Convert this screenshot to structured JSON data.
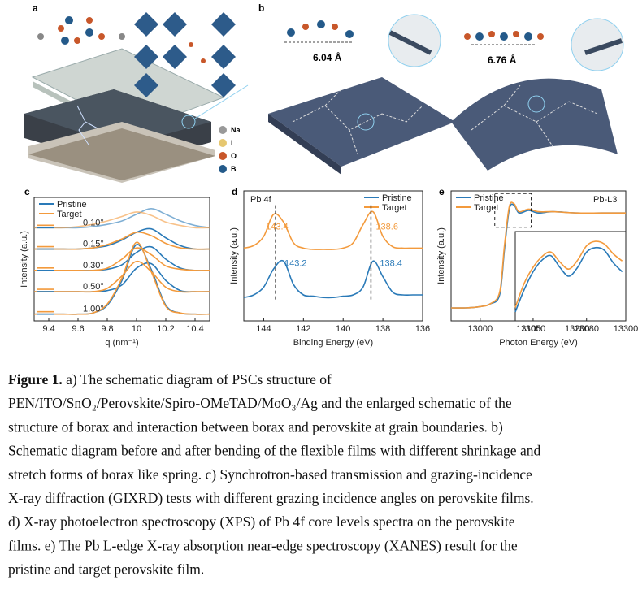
{
  "figure": {
    "panel_labels": [
      "a",
      "b",
      "c",
      "d",
      "e"
    ],
    "elements": [
      "Na",
      "I",
      "O",
      "B"
    ],
    "distances": [
      "6.04 Å",
      "6.76 Å"
    ]
  },
  "chart_data": [
    {
      "type": "line",
      "xlabel": "q (nm⁻¹)",
      "ylabel": "Intensity (a.u.)",
      "xlim": [
        9.3,
        10.5
      ],
      "xticks": [
        9.4,
        9.6,
        9.8,
        10.0,
        10.2,
        10.4
      ],
      "ylim": [
        0,
        11
      ],
      "x": [
        9.3,
        9.4,
        9.5,
        9.6,
        9.7,
        9.8,
        9.9,
        10.0,
        10.1,
        10.2,
        10.3,
        10.4,
        10.5
      ],
      "angles": [
        "0.10°",
        "0.15°",
        "0.30°",
        "0.50°",
        "1.00°"
      ],
      "series": [
        {
          "name": "Pristine",
          "color": "#2a7ab8",
          "values": [
            [
              8.3,
              8.3,
              8.3,
              8.3,
              8.4,
              8.6,
              8.9,
              9.5,
              10.0,
              9.5,
              8.9,
              8.5,
              8.3
            ],
            [
              6.4,
              6.4,
              6.4,
              6.4,
              6.5,
              6.7,
              7.2,
              7.9,
              8.2,
              7.4,
              6.7,
              6.4,
              6.4
            ],
            [
              4.5,
              4.5,
              4.5,
              4.5,
              4.5,
              4.6,
              5.0,
              6.1,
              6.6,
              5.5,
              4.7,
              4.5,
              4.5
            ],
            [
              2.6,
              2.6,
              2.6,
              2.6,
              2.6,
              2.7,
              3.2,
              4.7,
              5.1,
              3.6,
              2.7,
              2.6,
              2.6
            ],
            [
              0.6,
              0.6,
              0.6,
              0.6,
              0.7,
              1.4,
              3.6,
              6.8,
              4.6,
              1.4,
              0.7,
              0.6,
              0.6
            ]
          ]
        },
        {
          "name": "Target",
          "color": "#f39a3c",
          "values": [
            [
              8.3,
              8.3,
              8.3,
              8.4,
              8.6,
              8.9,
              9.3,
              9.7,
              9.4,
              8.8,
              8.5,
              8.3,
              8.3
            ],
            [
              6.4,
              6.4,
              6.4,
              6.4,
              6.5,
              6.8,
              7.3,
              7.9,
              7.6,
              6.9,
              6.5,
              6.4,
              6.4
            ],
            [
              4.5,
              4.5,
              4.5,
              4.5,
              4.5,
              4.7,
              5.5,
              6.5,
              5.9,
              4.9,
              4.6,
              4.5,
              4.5
            ],
            [
              2.6,
              2.6,
              2.6,
              2.6,
              2.6,
              2.9,
              4.0,
              5.3,
              4.4,
              3.0,
              2.6,
              2.6,
              2.6
            ],
            [
              0.6,
              0.6,
              0.6,
              0.6,
              0.7,
              1.5,
              3.8,
              7.0,
              4.4,
              1.3,
              0.7,
              0.6,
              0.6
            ]
          ]
        }
      ]
    },
    {
      "type": "line",
      "title": "Pb 4f",
      "xlabel": "Binding Energy (eV)",
      "ylabel": "Intensity (a.u.)",
      "xlim": [
        145,
        136
      ],
      "xticks": [
        144,
        142,
        140,
        138,
        136
      ],
      "ylim": [
        0,
        10
      ],
      "x": [
        145,
        144.5,
        144,
        143.5,
        143,
        142.5,
        142,
        141.5,
        141,
        140.5,
        140,
        139.5,
        139,
        138.5,
        138,
        137.5,
        137,
        136.5,
        136
      ],
      "series": [
        {
          "name": "Pristine",
          "color": "#2a7ab8",
          "values": [
            1.8,
            2.0,
            2.6,
            4.0,
            4.6,
            2.8,
            2.0,
            1.9,
            1.8,
            1.8,
            1.9,
            2.0,
            2.6,
            4.6,
            3.4,
            2.2,
            2.0,
            2.0,
            2.0
          ],
          "peak_labels": [
            143.2,
            138.4
          ]
        },
        {
          "name": "Target",
          "color": "#f39a3c",
          "values": [
            5.6,
            5.8,
            6.5,
            8.2,
            7.6,
            6.0,
            5.6,
            5.5,
            5.5,
            5.5,
            5.6,
            6.0,
            7.4,
            8.4,
            6.5,
            5.7,
            5.6,
            5.6,
            5.6
          ],
          "peak_labels": [
            143.4,
            138.6
          ]
        }
      ]
    },
    {
      "type": "line",
      "title": "Pb-L3",
      "xlabel": "Photon Energy (eV)",
      "ylabel": "Intensity (a.u.)",
      "xlim": [
        12940,
        13300
      ],
      "xticks": [
        13000,
        13100,
        13200,
        13300
      ],
      "ylim": [
        0,
        10
      ],
      "x": [
        12940,
        12970,
        13000,
        13020,
        13040,
        13050,
        13060,
        13070,
        13080,
        13100,
        13120,
        13150,
        13200,
        13250,
        13300
      ],
      "series": [
        {
          "name": "Pristine",
          "color": "#2a7ab8",
          "values": [
            1,
            1,
            1.1,
            1.3,
            2,
            5.5,
            8.6,
            8.9,
            8.3,
            8.5,
            8.3,
            8.4,
            8.3,
            8.3,
            8.3
          ]
        },
        {
          "name": "Target",
          "color": "#f39a3c",
          "values": [
            1,
            1,
            1.1,
            1.3,
            2.2,
            5.8,
            8.8,
            9.0,
            8.4,
            8.6,
            8.4,
            8.4,
            8.3,
            8.3,
            8.3
          ]
        }
      ]
    },
    {
      "type": "line",
      "xlim": [
        13040,
        13102
      ],
      "xticks": [
        13050,
        13080
      ],
      "ylim": [
        0,
        10
      ],
      "x": [
        13040,
        13045,
        13050,
        13055,
        13060,
        13065,
        13070,
        13075,
        13080,
        13085,
        13090,
        13095,
        13100
      ],
      "series": [
        {
          "color": "#2a7ab8",
          "values": [
            1,
            3.5,
            5.5,
            6.8,
            7.3,
            6.0,
            5.0,
            6.0,
            7.7,
            8.2,
            7.9,
            6.5,
            5.5
          ]
        },
        {
          "color": "#f39a3c",
          "values": [
            1.5,
            4.2,
            6.0,
            7.2,
            7.7,
            6.6,
            5.8,
            6.8,
            8.4,
            8.9,
            8.6,
            7.5,
            6.7
          ]
        }
      ]
    }
  ],
  "caption": {
    "label": "Figure 1.",
    "lines": [
      " a) The schematic diagram of PSCs structure of",
      "PEN/ITO/SnO₂/Perovskite/Spiro-OMeTAD/MoO₃/Ag and the enlarged schematic of the",
      "structure of borax and interaction between borax and perovskite at grain boundaries. b)",
      "Schematic diagram before and after bending of the flexible films with different shrinkage and",
      "stretch forms of borax like spring. c) Synchrotron-based transmission and grazing-incidence",
      "X-ray diffraction (GIXRD) tests with different grazing incidence angles on perovskite films.",
      "d) X-ray photoelectron spectroscopy (XPS) of Pb 4f core levels spectra on the perovskite",
      "films. e) The Pb L-edge X-ray absorption near-edge spectroscopy (XANES) result for the",
      "pristine and target perovskite film."
    ]
  }
}
